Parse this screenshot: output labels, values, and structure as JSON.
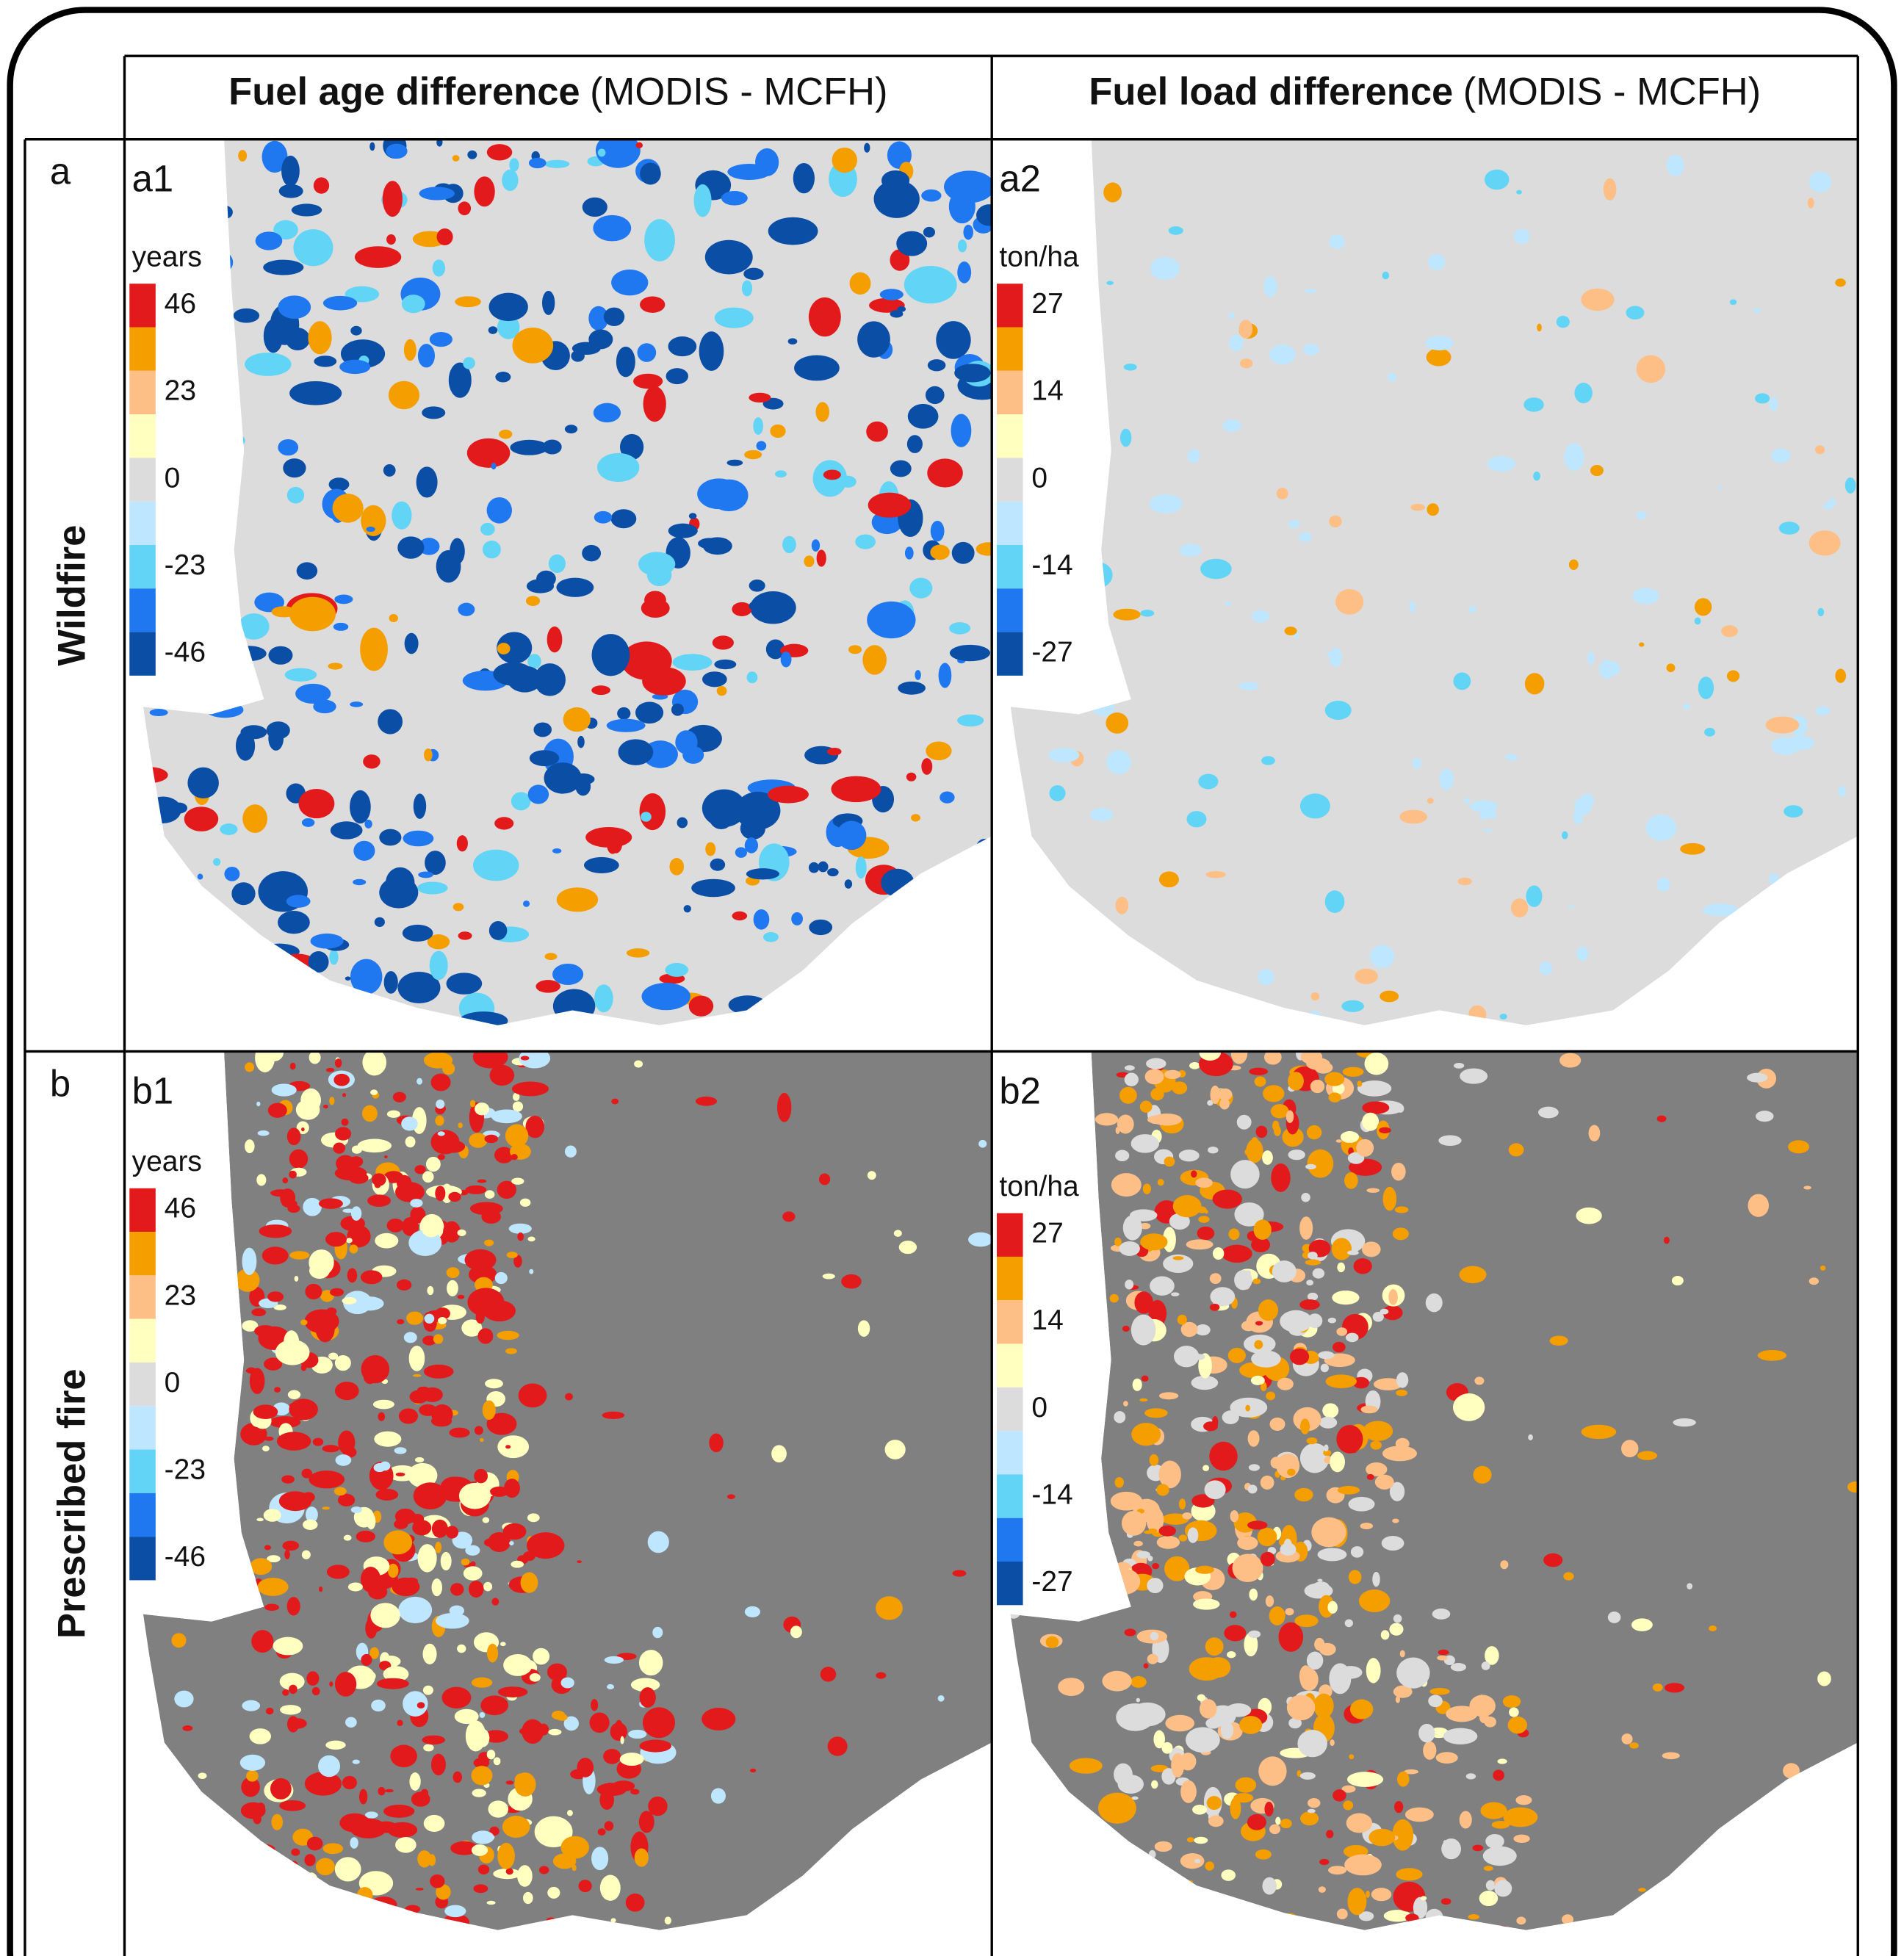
{
  "header": {
    "columns": [
      {
        "bold": "Fuel age difference",
        "normal": "(MODIS - MCFH)"
      },
      {
        "bold": "Fuel load difference",
        "normal": "(MODIS - MCFH)"
      }
    ]
  },
  "rows": [
    {
      "letter": "a",
      "label": "Wildfire",
      "panels": [
        {
          "label": "a1",
          "unit": "years",
          "ticks": [
            46,
            23,
            0,
            -23,
            -46
          ]
        },
        {
          "label": "a2",
          "unit": "ton/ha",
          "ticks": [
            27,
            14,
            0,
            -14,
            -27
          ]
        }
      ]
    },
    {
      "letter": "b",
      "label": "Prescribed fire",
      "panels": [
        {
          "label": "b1",
          "unit": "years",
          "ticks": [
            46,
            23,
            0,
            -23,
            -46
          ]
        },
        {
          "label": "b2",
          "unit": "ton/ha",
          "ticks": [
            27,
            14,
            0,
            -14,
            -27
          ]
        }
      ]
    }
  ],
  "legend_colors": [
    "#e31a1c",
    "#f59e00",
    "#fdbf86",
    "#ffffc0",
    "#dcdcdc",
    "#bfe6ff",
    "#62d4f5",
    "#1f78f0",
    "#0b4ea6"
  ]
}
